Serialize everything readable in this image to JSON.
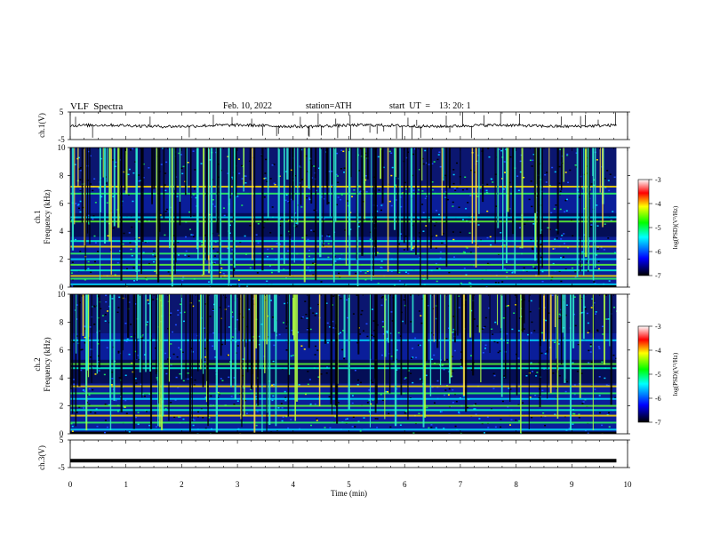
{
  "header": {
    "title": "VLF  Spectra",
    "date": "Feb. 10, 2022",
    "station": "station=ATH",
    "start": "start  UT  =    13: 20: 1"
  },
  "colors": {
    "trace": "#000000",
    "spectrogram_base": "#0a1e9a",
    "colormap": [
      "#000000",
      "#0000ff",
      "#00ffff",
      "#00ff00",
      "#ffff00",
      "#ff0000",
      "#ffffff"
    ]
  },
  "chart_data": [
    {
      "type": "line",
      "panel": "ch1",
      "ylabel": "ch.1(V)",
      "ylim": [
        -5,
        5
      ],
      "yticks": [
        "5",
        "-5"
      ],
      "baseline": 0,
      "description_values": {
        "mean": 0,
        "typical_amplitude": 0.5
      }
    },
    {
      "type": "heatmap",
      "panel": "ch1-spectrogram",
      "ylabel": "ch.1\nFrequency  (kHz)",
      "ylim": [
        0,
        10
      ],
      "yticks": [
        "0",
        "2",
        "4",
        "6",
        "8",
        "10"
      ],
      "colorbar": {
        "label": "log(PSD)(V²/Hz)",
        "ticks": [
          "-3",
          "-4",
          "-5",
          "-6",
          "-7"
        ],
        "range": [
          -7,
          -3
        ]
      },
      "bands_khz": [
        0.2,
        0.6,
        0.8,
        1.2,
        1.6,
        2.0,
        2.4,
        2.9,
        3.3,
        4.7,
        5.0,
        6.7,
        7.2
      ]
    },
    {
      "type": "heatmap",
      "panel": "ch2-spectrogram",
      "ylabel": "ch.2\nFrequency  (kHz)",
      "ylim": [
        0,
        10
      ],
      "yticks": [
        "0",
        "2",
        "4",
        "6",
        "8",
        "10"
      ],
      "colorbar": {
        "label": "log(PSD)(V²/Hz)",
        "ticks": [
          "-3",
          "-4",
          "-5",
          "-6",
          "-7"
        ],
        "range": [
          -7,
          -3
        ]
      },
      "bands_khz": [
        0.3,
        0.8,
        1.3,
        1.7,
        2.0,
        2.5,
        2.9,
        3.4,
        4.7,
        5.0,
        6.7
      ]
    },
    {
      "type": "line",
      "panel": "ch3",
      "ylabel": "ch.3(V)",
      "ylim": [
        -5,
        5
      ],
      "yticks": [
        "5",
        "-5"
      ],
      "values_constant": -2.5
    },
    {
      "type": "axis",
      "xlabel": "Time  (min)",
      "xlim": [
        0,
        10
      ],
      "xticks": [
        "0",
        "1",
        "2",
        "3",
        "4",
        "5",
        "6",
        "7",
        "8",
        "9",
        "10"
      ],
      "data_end_min": 9.8
    }
  ]
}
